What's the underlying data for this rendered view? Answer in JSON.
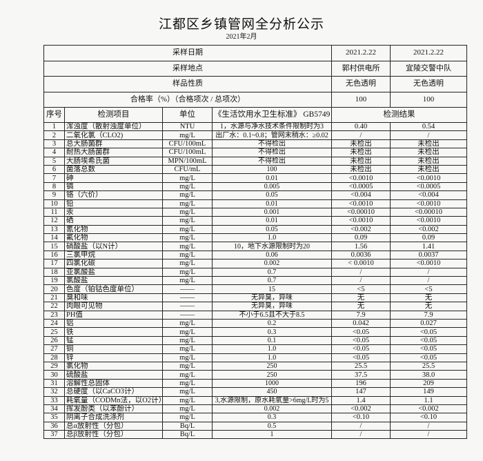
{
  "title": "江都区乡镇管网全分析公示",
  "subtitle": "2021年2月",
  "meta_rows": [
    {
      "label": "采样日期",
      "values": [
        "2021.2.22",
        "2021.2.22"
      ]
    },
    {
      "label": "采样地点",
      "values": [
        "郭村供电所",
        "宜陵交警中队"
      ]
    },
    {
      "label": "样品性质",
      "values": [
        "无色透明",
        "无色透明"
      ]
    },
    {
      "label": "合格率（%）（合格项次 / 总项次）",
      "values": [
        "100",
        "100"
      ]
    }
  ],
  "headers": {
    "seq": "序号",
    "item": "检测项目",
    "unit": "单位",
    "standard": "《生活饮用水卫生标准》 GB5749",
    "results": "检测结果"
  },
  "rows": [
    [
      "1",
      "浑浊度（散射浊度单位）",
      "NTU",
      "1，水源与净水技术条件限制时为3",
      "0.40",
      "0.54"
    ],
    [
      "2",
      "二氧化氯（CLO2)",
      "mg/L",
      "出厂水：0.1~0.8；管网末稍水：≥0.02",
      "/",
      "/"
    ],
    [
      "3",
      "总大肠菌群",
      "CFU/100mL",
      "不得检出",
      "未检出",
      "未检出"
    ],
    [
      "4",
      "耐热大肠菌群",
      "CFU/100mL",
      "不得检出",
      "未检出",
      "未检出"
    ],
    [
      "5",
      "大肠埃希氏菌",
      "MPN/100mL",
      "不得检出",
      "未检出",
      "未检出"
    ],
    [
      "6",
      "菌落总数",
      "CFU/mL",
      "100",
      "未检出",
      "未检出"
    ],
    [
      "7",
      "砷",
      "mg/L",
      "0.01",
      "<0.0010",
      "<0.0010"
    ],
    [
      "8",
      "镉",
      "mg/L",
      "0.005",
      "<0.0005",
      "<0.0005"
    ],
    [
      "9",
      "铬（六价）",
      "mg/L",
      "0.05",
      "<0.004",
      "<0.004"
    ],
    [
      "10",
      "铅",
      "mg/L",
      "0.01",
      "<0.0010",
      "<0.0010"
    ],
    [
      "11",
      "汞",
      "mg/L",
      "0.001",
      "<0.00010",
      "<0.00010"
    ],
    [
      "12",
      "硒",
      "mg/L",
      "0.01",
      "<0.0010",
      "<0.0010"
    ],
    [
      "13",
      "氰化物",
      "mg/L",
      "0.05",
      "<0.002",
      "<0.002"
    ],
    [
      "14",
      "氟化物",
      "mg/L",
      "1.0",
      "0.09",
      "0.09"
    ],
    [
      "15",
      "硝酸盐（以N计）",
      "mg/L",
      "10，地下水源限制时为20",
      "1.56",
      "1.41"
    ],
    [
      "16",
      "三氯甲烷",
      "mg/L",
      "0.06",
      "0.0036",
      "0.0037"
    ],
    [
      "17",
      "四氯化碳",
      "mg/L",
      "0.002",
      "< 0.0010",
      "<0.0010"
    ],
    [
      "18",
      "亚氯酸盐",
      "mg/L",
      "0.7",
      "/",
      "/"
    ],
    [
      "19",
      "氯酸盐",
      "mg/L",
      "0.7",
      "/",
      "/"
    ],
    [
      "20",
      "色度（铂钴色度单位）",
      "——",
      "15",
      "<5",
      "<5"
    ],
    [
      "21",
      "臭和味",
      "——",
      "无异臭，异味",
      "无",
      "无"
    ],
    [
      "22",
      "肉眼可见物",
      "——",
      "无异臭，异味",
      "无",
      "无"
    ],
    [
      "23",
      "PH值",
      "——",
      "不小于6.5且不大于8.5",
      "7.9",
      "7.9"
    ],
    [
      "24",
      "铝",
      "mg/L",
      "0.2",
      "0.042",
      "0.027"
    ],
    [
      "25",
      "铁",
      "mg/L",
      "0.3",
      "<0.05",
      "<0.05"
    ],
    [
      "26",
      "锰",
      "mg/L",
      "0.1",
      "<0.05",
      "<0.05"
    ],
    [
      "27",
      "铜",
      "mg/L",
      "1.0",
      "<0.05",
      "<0.05"
    ],
    [
      "28",
      "锌",
      "mg/L",
      "1.0",
      "<0.05",
      "<0.05"
    ],
    [
      "29",
      "氯化物",
      "mg/L",
      "250",
      "25.5",
      "25.5"
    ],
    [
      "30",
      "硫酸盐",
      "mg/L",
      "250",
      "37.5",
      "38.0"
    ],
    [
      "31",
      "溶解性总固体",
      "mg/L",
      "1000",
      "196",
      "209"
    ],
    [
      "32",
      "总硬度（以CaCO3计）",
      "mg/L",
      "450",
      "147",
      "149"
    ],
    [
      "33",
      "耗氧量（CODMn法，以O2计）",
      "mg/L",
      "3,水源限制，原水耗氧量>6mg/L时为5",
      "1.4",
      "1.1"
    ],
    [
      "34",
      "挥发酚类（以苯酚计）",
      "mg/L",
      "0.002",
      "<0.002",
      "<0.002"
    ],
    [
      "35",
      "阴离子合成洗涤剂",
      "mg/L",
      "0.3",
      "<0.10",
      "<0.10"
    ],
    [
      "36",
      "总α放射性（分包）",
      "Bq/L",
      "0.5",
      "/",
      "/"
    ],
    [
      "37",
      "总β放射性（分包）",
      "Bq/L",
      "1",
      "/",
      "/"
    ]
  ]
}
